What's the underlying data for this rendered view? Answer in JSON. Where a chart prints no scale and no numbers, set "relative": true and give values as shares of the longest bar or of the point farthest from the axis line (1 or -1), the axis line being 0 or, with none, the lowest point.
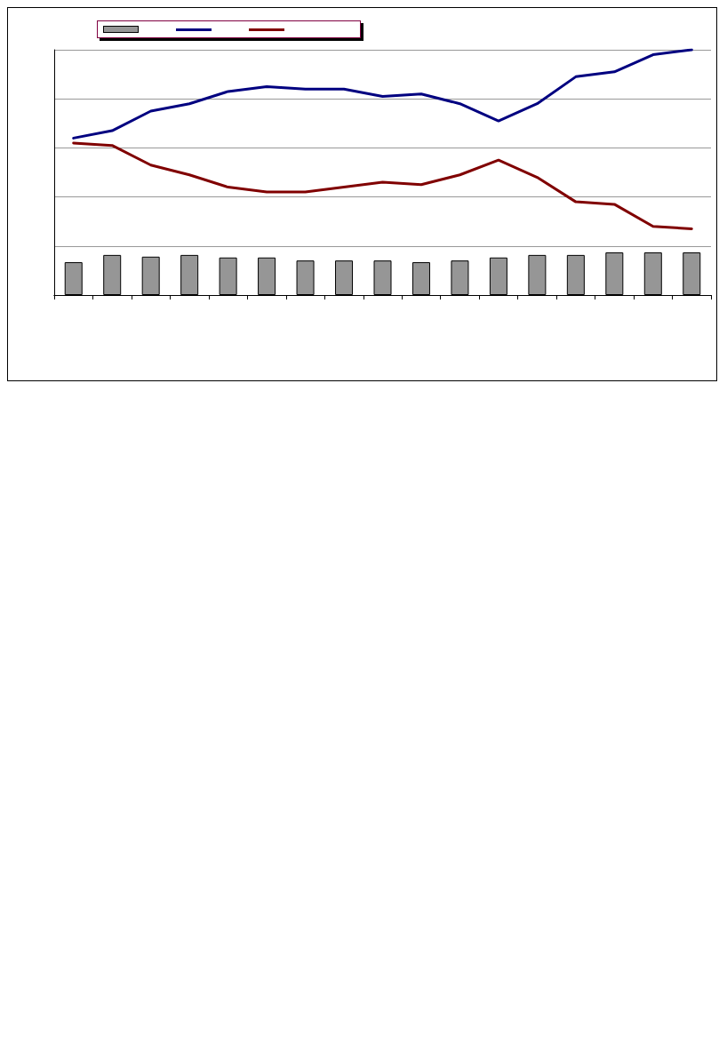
{
  "chart_data": [
    {
      "type": "bar",
      "relative": true,
      "color": "#969696",
      "categories": [
        null,
        null,
        null,
        null,
        null,
        null,
        null,
        null,
        null,
        null,
        null,
        null,
        null,
        null,
        null,
        null,
        null
      ],
      "values": [
        0.77,
        0.94,
        0.9,
        0.94,
        0.88,
        0.88,
        0.81,
        0.81,
        0.81,
        0.77,
        0.81,
        0.88,
        0.94,
        0.94,
        1,
        1,
        1
      ]
    },
    {
      "type": "line",
      "relative": true,
      "grid": "y",
      "categories": [
        null,
        null,
        null,
        null,
        null,
        null,
        null,
        null,
        null,
        null,
        null,
        null,
        null,
        null,
        null,
        null,
        null
      ],
      "series": [
        {
          "color": "#000080",
          "values": [
            0.64,
            0.67,
            0.75,
            0.78,
            0.83,
            0.85,
            0.84,
            0.84,
            0.81,
            0.82,
            0.78,
            0.71,
            0.78,
            0.89,
            0.91,
            0.98,
            1
          ]
        },
        {
          "color": "#800000",
          "values": [
            0.62,
            0.61,
            0.53,
            0.49,
            0.44,
            0.42,
            0.42,
            0.44,
            0.46,
            0.45,
            0.49,
            0.55,
            0.48,
            0.38,
            0.37,
            0.28,
            0.27
          ]
        }
      ]
    }
  ]
}
